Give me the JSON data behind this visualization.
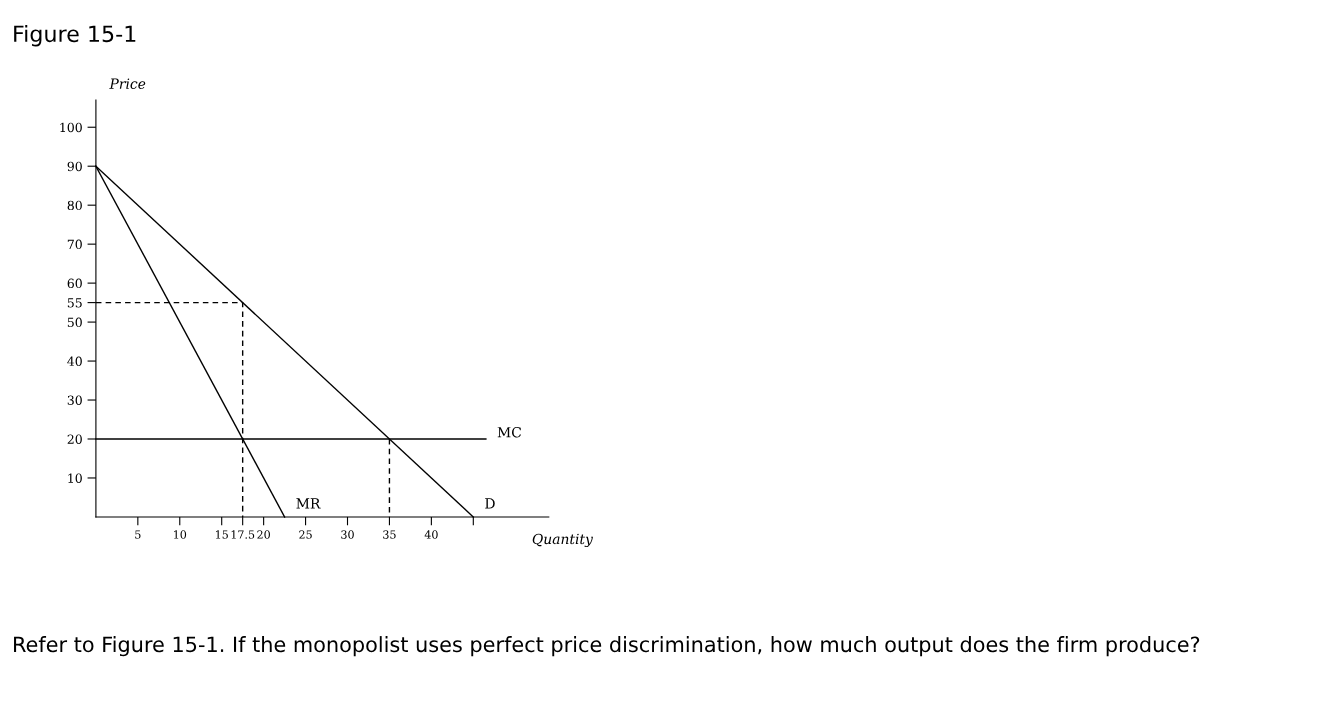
{
  "chart_data": {
    "type": "line",
    "title": "Figure 15-1",
    "xlabel": "Quantity",
    "ylabel": "Price",
    "annotations": [
      "Refer to Figure 15-1. If the monopolist uses perfect price discrimination, how much output does the firm produce?"
    ],
    "series": [
      {
        "name": "D",
        "color": "#000000",
        "x": [
          0,
          45
        ],
        "values": [
          90,
          0
        ]
      },
      {
        "name": "MR",
        "color": "#000000",
        "x": [
          0,
          22.5
        ],
        "values": [
          90,
          0
        ]
      },
      {
        "name": "MC",
        "color": "#000000",
        "x": [
          0,
          46.5
        ],
        "values": [
          20,
          20
        ]
      },
      {
        "color": "#000000",
        "line_style": "dashed",
        "x": [
          0,
          17.5,
          17.5
        ],
        "values": [
          55,
          55,
          0
        ]
      },
      {
        "color": "#000000",
        "line_style": "dashed",
        "x": [
          35,
          35
        ],
        "values": [
          20,
          0
        ]
      }
    ],
    "xlim": [
      0,
      54
    ],
    "ylim": [
      0,
      107
    ],
    "xticks": [
      5,
      10,
      15,
      17.5,
      20,
      25,
      30,
      35,
      40,
      {
        "value": 45,
        "label": null
      }
    ],
    "yticks": [
      10,
      20,
      30,
      40,
      50,
      55,
      60,
      70,
      80,
      90,
      100
    ],
    "grid": false,
    "legend": false,
    "marker": "none",
    "line_style": "solid"
  }
}
